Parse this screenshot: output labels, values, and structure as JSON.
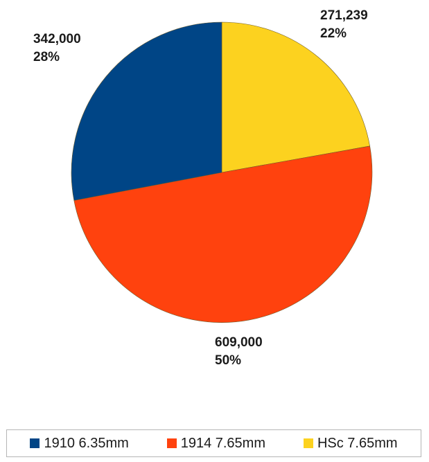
{
  "chart_data": {
    "type": "pie",
    "start_angle_deg": 0,
    "direction": "clockwise",
    "slices": [
      {
        "name": "HSc 7.65mm",
        "value": 271239,
        "value_label": "271,239",
        "percent_label": "22%",
        "color": "#fcd21f"
      },
      {
        "name": "1914 7.65mm",
        "value": 609000,
        "value_label": "609,000",
        "percent_label": "50%",
        "color": "#ff420e"
      },
      {
        "name": "1910 6.35mm",
        "value": 342000,
        "value_label": "342,000",
        "percent_label": "28%",
        "color": "#004586"
      }
    ],
    "legend_position": "bottom",
    "legend_order": [
      2,
      1,
      0
    ]
  }
}
